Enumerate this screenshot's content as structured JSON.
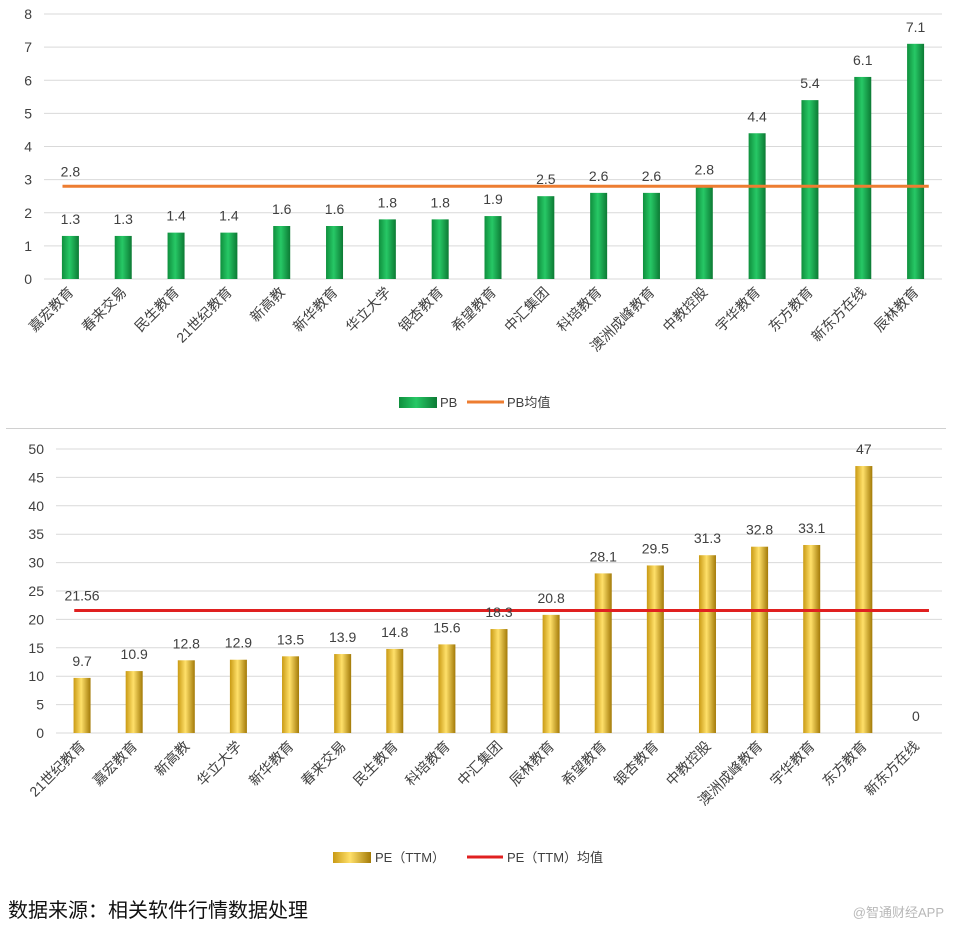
{
  "charts": {
    "pb": {
      "legend_bar": "PB",
      "legend_line": "PB均值"
    },
    "pe": {
      "legend_bar": "PE（TTM）",
      "legend_line": "PE（TTM）均值"
    }
  },
  "footer": {
    "source": "数据来源：相关软件行情数据处理",
    "watermark": "@智通财经APP"
  },
  "chart_data": [
    {
      "type": "bar",
      "categories": [
        "嘉宏教育",
        "春来交易",
        "民生教育",
        "21世纪教育",
        "新高教",
        "新华教育",
        "华立大学",
        "银杏教育",
        "希望教育",
        "中汇集团",
        "科培教育",
        "澳洲成峰教育",
        "中教控股",
        "宇华教育",
        "东方教育",
        "新东方在线",
        "辰林教育"
      ],
      "series": [
        {
          "name": "PB",
          "values": [
            1.3,
            1.3,
            1.4,
            1.4,
            1.6,
            1.6,
            1.8,
            1.8,
            1.9,
            2.5,
            2.6,
            2.6,
            2.8,
            4.4,
            5.4,
            6.1,
            7.1
          ],
          "color": "#1db954"
        }
      ],
      "reference_line": {
        "name": "PB均值",
        "value": 2.8,
        "label": "2.8",
        "color": "#ed7d31"
      },
      "ylim": [
        0,
        8
      ],
      "yticks": [
        0,
        1,
        2,
        3,
        4,
        5,
        6,
        7,
        8
      ],
      "grid": true,
      "legend": "bottom"
    },
    {
      "type": "bar",
      "categories": [
        "21世纪教育",
        "嘉宏教育",
        "新高教",
        "华立大学",
        "新华教育",
        "春来交易",
        "民生教育",
        "科培教育",
        "中汇集团",
        "辰林教育",
        "希望教育",
        "银杏教育",
        "中教控股",
        "澳洲成峰教育",
        "宇华教育",
        "东方教育",
        "新东方在线"
      ],
      "series": [
        {
          "name": "PE（TTM）",
          "values": [
            9.7,
            10.9,
            12.8,
            12.9,
            13.5,
            13.9,
            14.8,
            15.6,
            18.3,
            20.8,
            28.1,
            29.5,
            31.3,
            32.8,
            33.1,
            47,
            0
          ],
          "color": "#f2c12e"
        }
      ],
      "reference_line": {
        "name": "PE（TTM）均值",
        "value": 21.56,
        "label": "21.56",
        "color": "#e02020"
      },
      "ylim": [
        0,
        50
      ],
      "yticks": [
        0,
        5,
        10,
        15,
        20,
        25,
        30,
        35,
        40,
        45,
        50
      ],
      "grid": true,
      "legend": "bottom"
    }
  ]
}
